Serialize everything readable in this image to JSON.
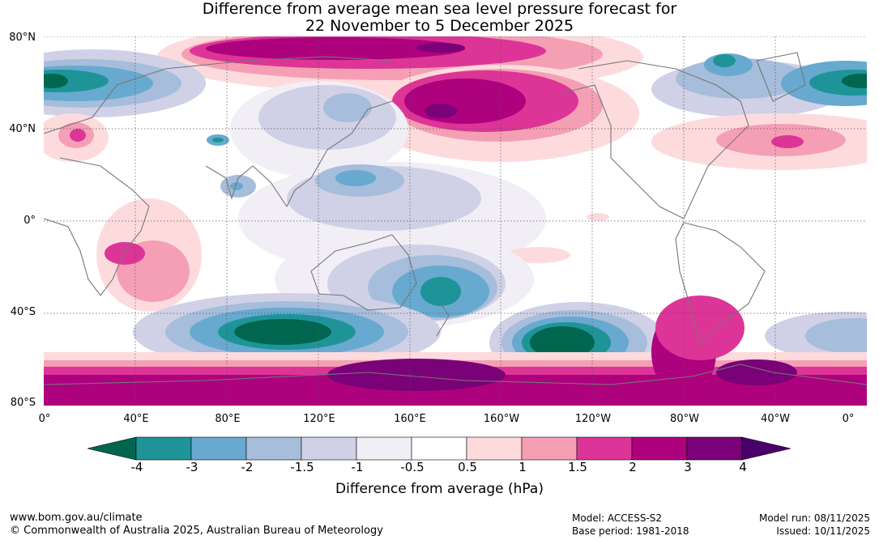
{
  "title_line1": "Difference from average mean sea level pressure forecast for",
  "title_line2": "22 November to 5 December 2025",
  "lat_labels": [
    "80°N",
    "40°N",
    "0°",
    "40°S",
    "80°S"
  ],
  "lon_labels": [
    "0°",
    "40°E",
    "80°E",
    "120°E",
    "160°E",
    "160°W",
    "120°W",
    "80°W",
    "40°W",
    "0°"
  ],
  "colorbar": {
    "label": "Difference from average (hPa)",
    "ticks": [
      "-4",
      "-3",
      "-2",
      "-1.5",
      "-1",
      "-0.5",
      "0.5",
      "1",
      "1.5",
      "2",
      "3",
      "4"
    ],
    "colors": [
      "#00664f",
      "#1e9498",
      "#68a9cf",
      "#a6bddb",
      "#d0d1e6",
      "#f1eef6",
      "#ffffff",
      "#fddbdd",
      "#f59fb5",
      "#dd3497",
      "#ae017e",
      "#7a0177",
      "#49006a"
    ]
  },
  "footer": {
    "website": "www.bom.gov.au/climate",
    "copyright": "© Commonwealth of Australia 2025, Australian Bureau of Meteorology",
    "model": "Model: ACCESS-S2",
    "base_period": "Base period: 1981-2018",
    "model_run": "Model run: 08/11/2025",
    "issued": "Issued: 10/11/2025"
  }
}
